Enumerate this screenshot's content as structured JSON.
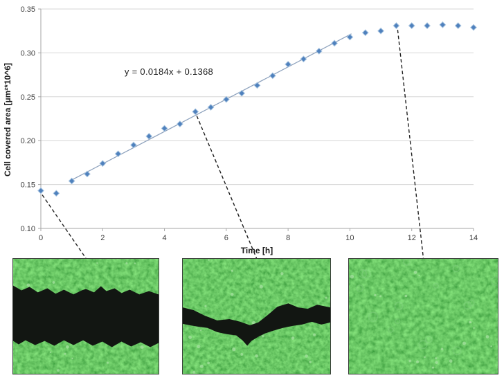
{
  "chart_data": {
    "type": "scatter",
    "title": "",
    "xlabel": "Time [h]",
    "ylabel": "Cell covered area [µm²*10^6]",
    "equation_label": "y = 0.0184x + 0.1368",
    "xlim": [
      0,
      14
    ],
    "ylim": [
      0.1,
      0.35
    ],
    "x_ticks": [
      "0",
      "2",
      "4",
      "6",
      "8",
      "10",
      "12",
      "14"
    ],
    "y_ticks": [
      "0.10",
      "0.15",
      "0.20",
      "0.25",
      "0.30",
      "0.35"
    ],
    "grid": "horizontal-only",
    "legend": "none",
    "series": [
      {
        "name": "cell-covered-area",
        "marker": "diamond",
        "color": "#4f81bd",
        "x": [
          0,
          0.5,
          1,
          1.5,
          2,
          2.5,
          3,
          3.5,
          4,
          4.5,
          5,
          5.5,
          6,
          6.5,
          7,
          7.5,
          8,
          8.5,
          9,
          9.5,
          10,
          10.5,
          11,
          11.5,
          12,
          12.5,
          13,
          13.5,
          14
        ],
        "y": [
          0.143,
          0.14,
          0.154,
          0.162,
          0.174,
          0.185,
          0.195,
          0.205,
          0.214,
          0.219,
          0.233,
          0.238,
          0.247,
          0.254,
          0.263,
          0.274,
          0.287,
          0.293,
          0.302,
          0.311,
          0.318,
          0.323,
          0.325,
          0.331,
          0.331,
          0.331,
          0.332,
          0.331,
          0.329
        ]
      }
    ],
    "trendline": {
      "slope": 0.0184,
      "intercept": 0.1368,
      "x_start": 0.95,
      "x_end": 10.05
    },
    "callouts": [
      {
        "from_x": 0,
        "from_y": 0.143,
        "micrograph_index": 0
      },
      {
        "from_x": 5,
        "from_y": 0.233,
        "micrograph_index": 1
      },
      {
        "from_x": 11.5,
        "from_y": 0.331,
        "micrograph_index": 2
      }
    ],
    "colors": {
      "marker": "#4f81bd",
      "marker_halo": "#a8c4e0",
      "trendline": "#8ea2bd",
      "grid": "#d6d6d6",
      "axis": "#a6a6a6",
      "tick_text": "#3d3d3d",
      "callout_line": "#1f1f1f"
    }
  },
  "micrographs": [
    {
      "name": "wound-open",
      "appearance": "wide dark scratch gap between two green cell layers"
    },
    {
      "name": "wound-partially-closed",
      "appearance": "narrow wavy dark scratch between green cell layers"
    },
    {
      "name": "wound-closed",
      "appearance": "confluent green cell monolayer with faint round cells"
    }
  ],
  "micrograph_colors": {
    "cells_green": "#2f8c34",
    "scratch_black": "#121612",
    "speck_light": "#a5e0a0"
  }
}
